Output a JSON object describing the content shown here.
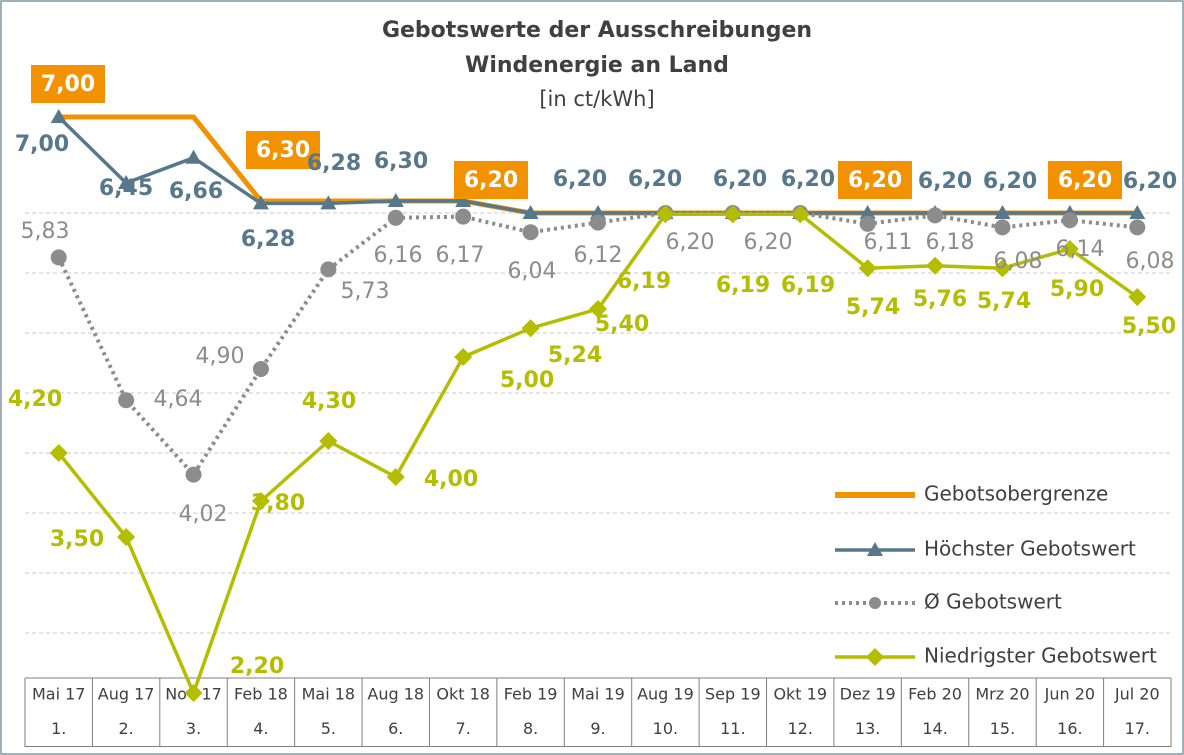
{
  "chart_data": {
    "type": "line",
    "title": "Gebotswerte der Ausschreibungen",
    "title_line2": "Windenergie an Land",
    "subtitle": "[in ct/kWh]",
    "categories": [
      "Mai 17",
      "Aug 17",
      "Nov 17",
      "Feb 18",
      "Mai 18",
      "Aug 18",
      "Okt 18",
      "Feb 19",
      "Mai 19",
      "Aug 19",
      "Sep 19",
      "Okt 19",
      "Dez 19",
      "Feb 20",
      "Mrz 20",
      "Jun 20",
      "Jul 20"
    ],
    "category_numbers": [
      "1.",
      "2.",
      "3.",
      "4.",
      "5.",
      "6.",
      "7.",
      "8.",
      "9.",
      "10.",
      "11.",
      "12.",
      "13.",
      "14.",
      "15.",
      "16.",
      "17."
    ],
    "ylim": [
      2.0,
      7.4
    ],
    "yticks": [
      2.7,
      3.2,
      3.7,
      4.2,
      4.7,
      5.2,
      5.7,
      6.2
    ],
    "grid": true,
    "legend": "right",
    "series": [
      {
        "name": "Gebotsobergrenze",
        "color": "#f39200",
        "marker": "none",
        "style": "solid",
        "values": [
          7.0,
          7.0,
          7.0,
          6.3,
          6.3,
          6.3,
          6.3,
          6.2,
          6.2,
          6.2,
          6.2,
          6.2,
          6.2,
          6.2,
          6.2,
          6.2,
          6.2
        ],
        "value_labels": [
          "7,00",
          null,
          null,
          "6,30",
          null,
          null,
          null,
          "6,20",
          null,
          null,
          null,
          null,
          "6,20",
          null,
          null,
          "6,20",
          null
        ]
      },
      {
        "name": "Höchster Gebotswert",
        "color": "#56788a",
        "marker": "triangle",
        "style": "solid",
        "values": [
          7.0,
          6.45,
          6.66,
          6.28,
          6.28,
          6.3,
          6.3,
          6.2,
          6.2,
          6.2,
          6.2,
          6.2,
          6.2,
          6.2,
          6.2,
          6.2,
          6.2
        ],
        "value_labels": [
          "7,00",
          "6,45",
          "6,66",
          "6,28",
          "6,28",
          "6,30",
          null,
          null,
          "6,20",
          "6,20",
          "6,20",
          "6,20",
          null,
          "6,20",
          "6,20",
          null,
          "6,20"
        ]
      },
      {
        "name": "Ø Gebotswert",
        "color": "#8c8c8c",
        "marker": "circle",
        "style": "dotted",
        "values": [
          5.83,
          4.64,
          4.02,
          4.9,
          5.73,
          6.16,
          6.17,
          6.04,
          6.12,
          6.2,
          6.2,
          6.2,
          6.11,
          6.18,
          6.08,
          6.14,
          6.08
        ],
        "value_labels": [
          "5,83",
          "4,64",
          "4,02",
          "4,90",
          "5,73",
          "6,16",
          "6,17",
          "6,04",
          "6,12",
          "6,20",
          "6,20",
          null,
          "6,11",
          "6,18",
          "6,08",
          "6,14",
          "6,08"
        ]
      },
      {
        "name": "Niedrigster Gebotswert",
        "color": "#b5bd00",
        "marker": "diamond",
        "style": "solid",
        "values": [
          4.2,
          3.5,
          2.2,
          3.8,
          4.3,
          4.0,
          5.0,
          5.24,
          5.4,
          6.19,
          6.19,
          6.19,
          5.74,
          5.76,
          5.74,
          5.9,
          5.5
        ],
        "value_labels": [
          "4,20",
          "3,50",
          "2,20",
          "3,80",
          "4,30",
          "4,00",
          "5,00",
          "5,24",
          "5,40",
          "6,19",
          "6,19",
          "6,19",
          "5,74",
          "5,76",
          "5,74",
          "5,90",
          "5,50"
        ]
      }
    ]
  }
}
